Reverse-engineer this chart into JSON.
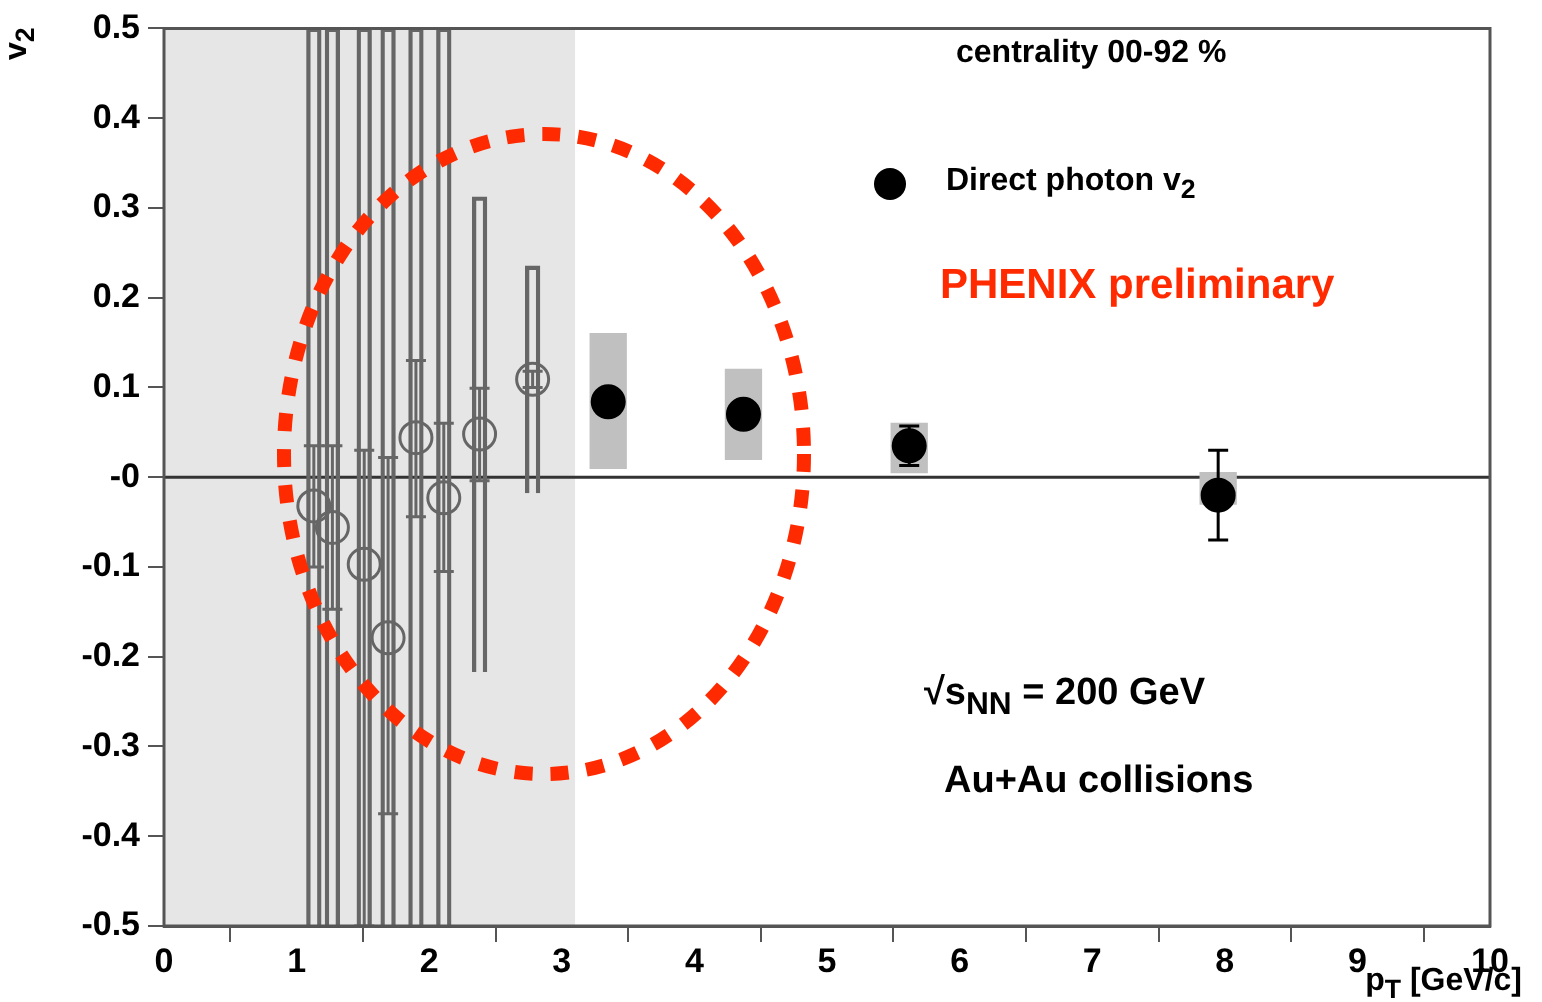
{
  "chart_data": {
    "type": "scatter",
    "xlabel": "p$_{T}$ [GeV/c]",
    "ylabel": "v$_{2}$",
    "xlim": [
      0,
      10
    ],
    "xticks": [
      0,
      1,
      2,
      3,
      4,
      5,
      6,
      7,
      8,
      9,
      10
    ],
    "ylim": [
      -0.5,
      0.5
    ],
    "yticks": [
      -0.5,
      -0.4,
      -0.3,
      -0.2,
      -0.1,
      {
        "value": 0,
        "label": "-0"
      },
      0.1,
      0.2,
      0.3,
      0.4,
      0.5
    ],
    "grid": false,
    "legend": "top right",
    "marker": "circle",
    "bands": [
      {
        "axis": "x",
        "from": 0,
        "to": 3.1,
        "color": "#e6e6e6"
      }
    ],
    "ref_lines": [
      {
        "axis": "y",
        "value": 0,
        "color": "#333333"
      }
    ],
    "annotations": [
      "centrality 00-92 %",
      "PHENIX preliminary",
      "√s$_{NN}$ = 200 GeV",
      "Au+Au collisions"
    ],
    "series": [
      {
        "type": "bar",
        "color": "#666666",
        "x": [
          1.13,
          1.27,
          1.51,
          1.69,
          1.9,
          2.11,
          2.38,
          2.78
        ],
        "base": [
          -0.5,
          -0.5,
          -0.5,
          -0.5,
          -0.5,
          -0.5,
          -0.217,
          -0.018
        ],
        "values": [
          1,
          1,
          1,
          1,
          1,
          1,
          0.529,
          0.253
        ]
      },
      {
        "type": "bar",
        "color": "#c0c0c0",
        "x": [
          3.35,
          4.37,
          5.62,
          7.95
        ],
        "base": [
          0.01,
          0.02,
          0.005,
          -0.03
        ],
        "values": [
          0.15,
          0.1,
          0.055,
          0.035
        ]
      },
      {
        "color": "#666666",
        "x": [
          1.13,
          1.27,
          1.51,
          1.69,
          1.9,
          2.11,
          2.38,
          2.78
        ],
        "values": [
          -0.032,
          -0.056,
          -0.097,
          -0.179,
          0.044,
          -0.023,
          0.048,
          0.109
        ],
        "errors": [
          [
            -0.1,
            0.035
          ],
          [
            -0.147,
            0.035
          ],
          [
            -0.5,
            0.03
          ],
          [
            -0.375,
            0.022
          ],
          [
            -0.044,
            0.13
          ],
          [
            -0.105,
            0.06
          ],
          [
            -0.004,
            0.099
          ],
          [
            0.1,
            0.118
          ]
        ]
      },
      {
        "name": "Direct photon v$_{2}$",
        "color": "#000000",
        "x": [
          3.35,
          4.37,
          5.62,
          7.95
        ],
        "values": [
          0.084,
          0.07,
          0.035,
          -0.02
        ],
        "errors": [
          null,
          null,
          [
            0.013,
            0.057
          ],
          [
            -0.07,
            0.03
          ]
        ]
      }
    ]
  }
}
